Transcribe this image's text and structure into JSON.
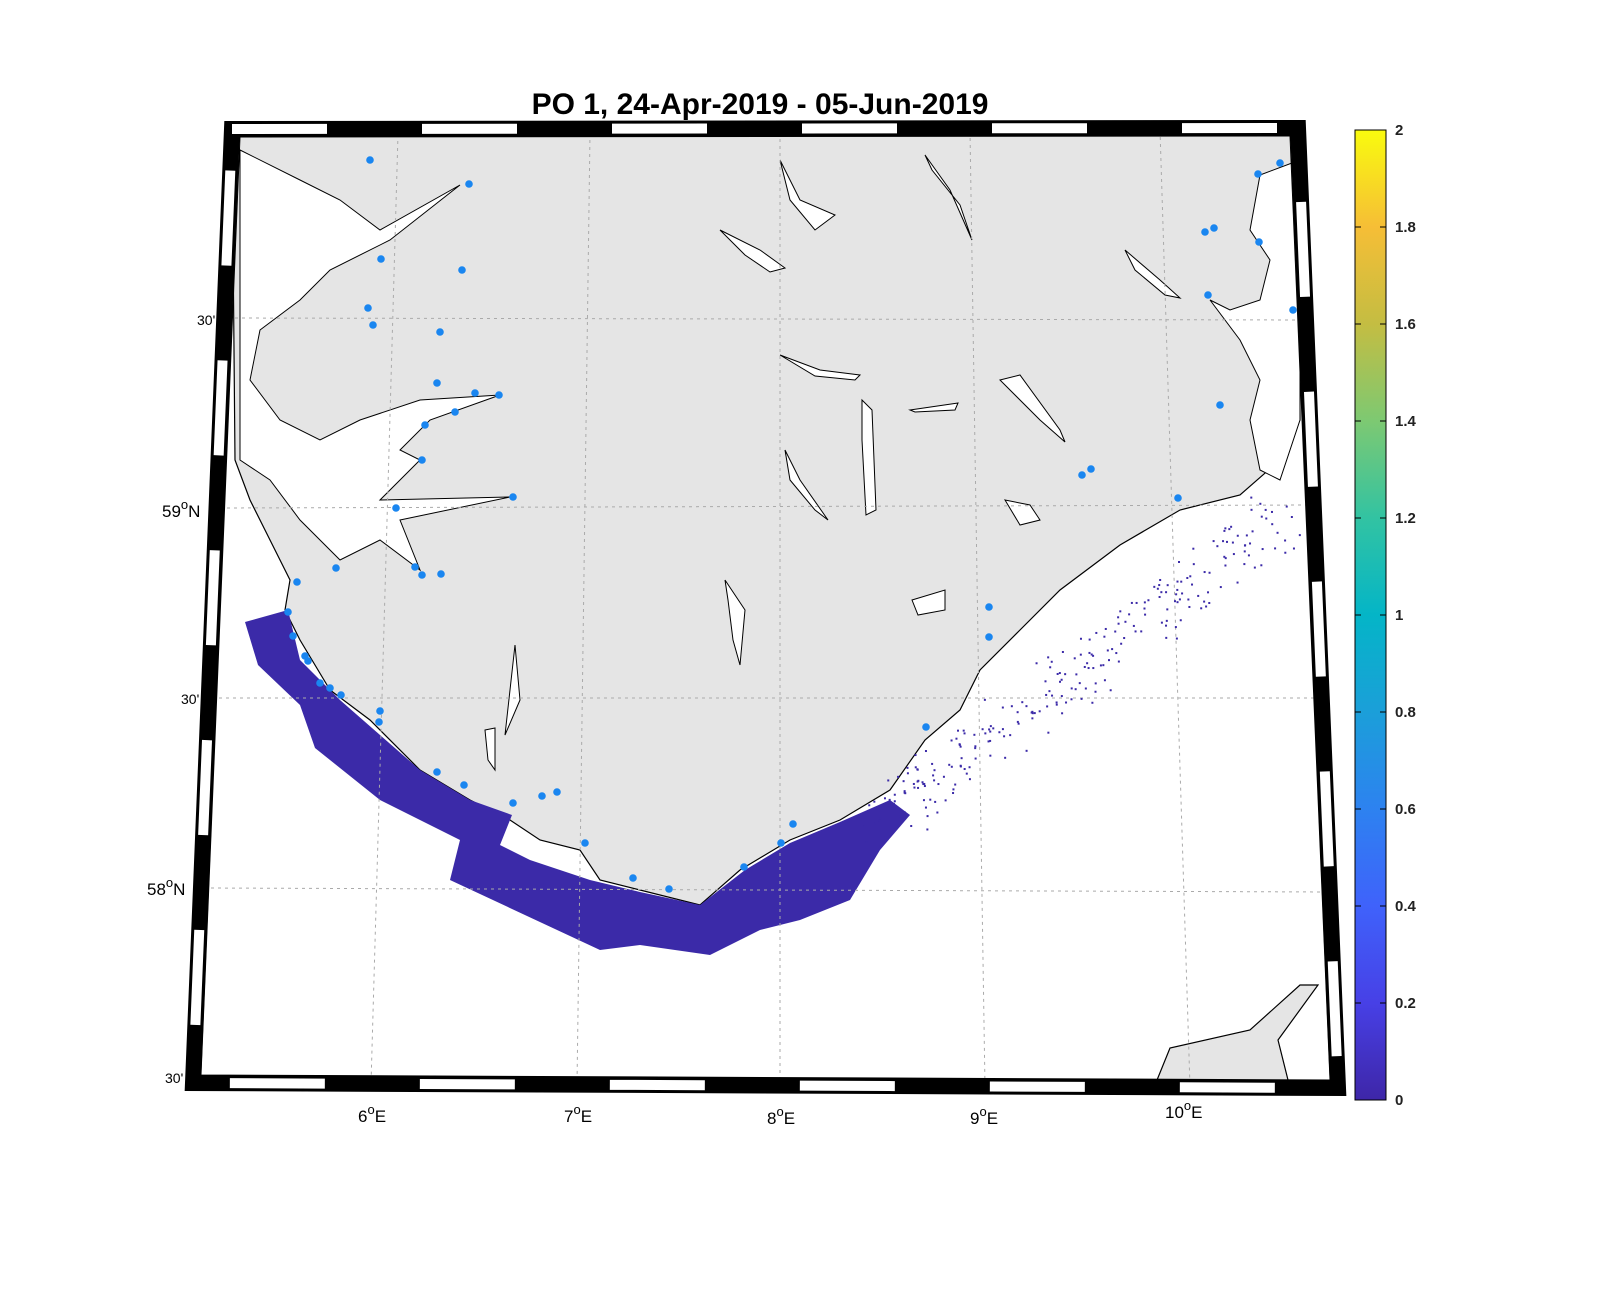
{
  "title": "PO 1, 24-Apr-2019  - 05-Jun-2019",
  "map": {
    "lon_labels": [
      {
        "deg": "6",
        "suffix": "E"
      },
      {
        "deg": "7",
        "suffix": "E"
      },
      {
        "deg": "8",
        "suffix": "E"
      },
      {
        "deg": "9",
        "suffix": "E"
      },
      {
        "deg": "10",
        "suffix": "E"
      }
    ],
    "lat_labels": [
      {
        "text": "30'"
      },
      {
        "deg": "59",
        "suffix": "N"
      },
      {
        "text": "30'"
      },
      {
        "deg": "58",
        "suffix": "N"
      },
      {
        "text": "30'"
      }
    ],
    "degree_symbol": "o",
    "land_color": "#e5e5e5",
    "station_color": "#1a86f0",
    "field_color": "#3b2aa8"
  },
  "colorbar": {
    "ticks": [
      "0",
      "0.2",
      "0.4",
      "0.6",
      "0.8",
      "1",
      "1.2",
      "1.4",
      "1.6",
      "1.8",
      "2"
    ],
    "range": [
      0,
      2
    ],
    "colormap": "parula"
  }
}
